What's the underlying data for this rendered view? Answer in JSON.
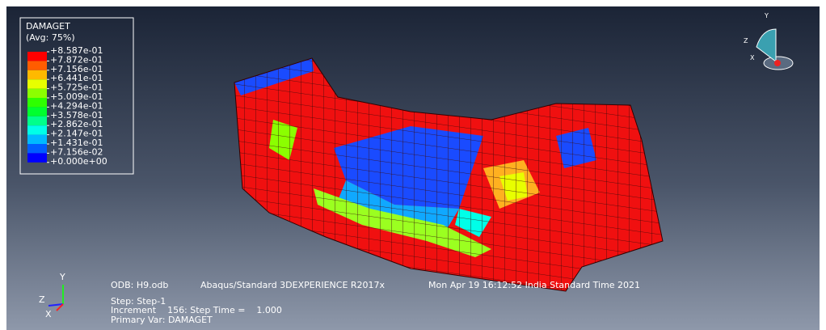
{
  "legend": {
    "title": "DAMAGET",
    "subtitle": "(Avg: 75%)",
    "labels": [
      "+8.587e-01",
      "+7.872e-01",
      "+7.156e-01",
      "+6.441e-01",
      "+5.725e-01",
      "+5.009e-01",
      "+4.294e-01",
      "+3.578e-01",
      "+2.862e-01",
      "+2.147e-01",
      "+1.431e-01",
      "+7.156e-02",
      "+0.000e+00"
    ],
    "colors": [
      "#ff0000",
      "#ff5d00",
      "#ffb900",
      "#e8ff00",
      "#8bff00",
      "#2eff00",
      "#00ff2e",
      "#00ff8b",
      "#00ffe8",
      "#00b9ff",
      "#005dff",
      "#0000ff"
    ]
  },
  "info": {
    "odb": "ODB: H9.odb",
    "solver": "Abaqus/Standard 3DEXPERIENCE R2017x",
    "date": "Mon Apr 19 16:12:52 India Standard Time 2021",
    "step": "Step: Step-1",
    "increment": "Increment    156: Step Time =    1.000",
    "primary": "Primary Var: DAMAGET"
  },
  "triad": {
    "y": "Y",
    "z": "Z",
    "x": "X"
  },
  "view_cube": {
    "y": "Y",
    "z": "Z",
    "x": "X"
  }
}
